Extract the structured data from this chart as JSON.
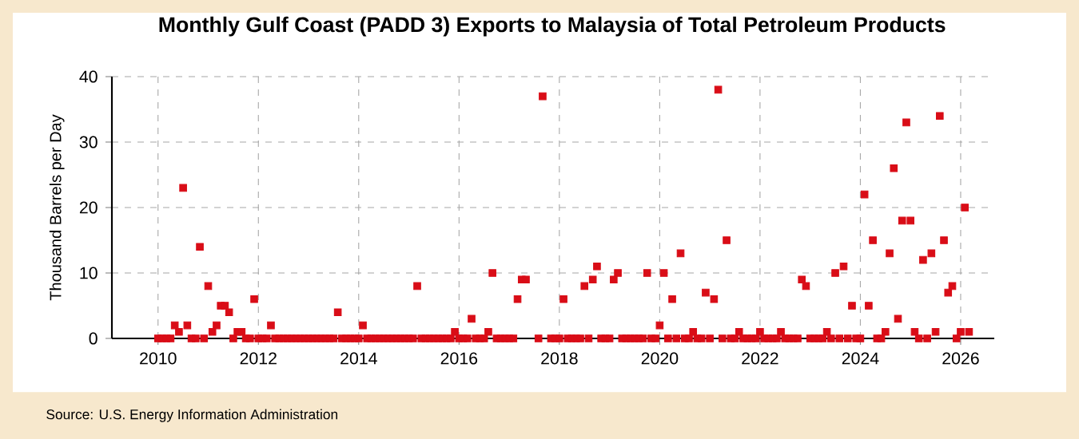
{
  "chart_data": {
    "type": "scatter",
    "title": "Monthly Gulf Coast (PADD 3) Exports to Malaysia of Total Petroleum Products",
    "ylabel": "Thousand Barrels per Day",
    "annotations": [
      "Source: U.S. Energy Information Administration"
    ],
    "x": [
      "2010-01",
      "2010-02",
      "2010-03",
      "2010-04",
      "2010-05",
      "2010-06",
      "2010-07",
      "2010-08",
      "2010-09",
      "2010-10",
      "2010-11",
      "2010-12",
      "2011-01",
      "2011-02",
      "2011-03",
      "2011-04",
      "2011-05",
      "2011-06",
      "2011-07",
      "2011-08",
      "2011-09",
      "2011-10",
      "2011-11",
      "2011-12",
      "2012-01",
      "2012-02",
      "2012-03",
      "2012-04",
      "2012-05",
      "2012-06",
      "2012-07",
      "2012-08",
      "2012-09",
      "2012-10",
      "2012-11",
      "2012-12",
      "2013-01",
      "2013-02",
      "2013-03",
      "2013-04",
      "2013-05",
      "2013-06",
      "2013-07",
      "2013-08",
      "2013-09",
      "2013-10",
      "2013-11",
      "2013-12",
      "2014-01",
      "2014-02",
      "2014-03",
      "2014-04",
      "2014-05",
      "2014-06",
      "2014-07",
      "2014-08",
      "2014-09",
      "2014-10",
      "2014-11",
      "2014-12",
      "2015-01",
      "2015-02",
      "2015-03",
      "2015-04",
      "2015-05",
      "2015-06",
      "2015-07",
      "2015-08",
      "2015-09",
      "2015-10",
      "2015-11",
      "2015-12",
      "2016-01",
      "2016-02",
      "2016-03",
      "2016-04",
      "2016-05",
      "2016-06",
      "2016-07",
      "2016-08",
      "2016-09",
      "2016-10",
      "2016-11",
      "2016-12",
      "2017-01",
      "2017-02",
      "2017-03",
      "2017-04",
      "2017-05",
      "2017-06",
      "2017-07",
      "2017-08",
      "2017-09",
      "2017-10",
      "2017-11",
      "2017-12",
      "2018-01",
      "2018-02",
      "2018-03",
      "2018-04",
      "2018-05",
      "2018-06",
      "2018-07",
      "2018-08",
      "2018-09",
      "2018-10",
      "2018-11",
      "2018-12",
      "2019-01",
      "2019-02",
      "2019-03",
      "2019-04",
      "2019-05",
      "2019-06",
      "2019-07",
      "2019-08",
      "2019-09",
      "2019-10",
      "2019-11",
      "2019-12",
      "2020-01",
      "2020-02",
      "2020-03",
      "2020-04",
      "2020-05",
      "2020-06",
      "2020-07",
      "2020-08",
      "2020-09",
      "2020-10",
      "2020-11",
      "2020-12",
      "2021-01",
      "2021-02",
      "2021-03",
      "2021-04",
      "2021-05",
      "2021-06",
      "2021-07",
      "2021-08",
      "2021-09",
      "2021-10",
      "2021-11",
      "2021-12",
      "2022-01",
      "2022-02",
      "2022-03",
      "2022-04",
      "2022-05",
      "2022-06",
      "2022-07",
      "2022-08",
      "2022-09",
      "2022-10",
      "2022-11",
      "2022-12",
      "2023-01",
      "2023-02",
      "2023-03",
      "2023-04",
      "2023-05",
      "2023-06",
      "2023-07",
      "2023-08",
      "2023-09",
      "2023-10",
      "2023-11",
      "2023-12",
      "2024-01",
      "2024-02",
      "2024-03",
      "2024-04",
      "2024-05",
      "2024-06",
      "2024-07",
      "2024-08",
      "2024-09",
      "2024-10",
      "2024-11",
      "2024-12",
      "2025-01",
      "2025-02",
      "2025-03",
      "2025-04",
      "2025-05",
      "2025-06",
      "2025-07",
      "2025-08",
      "2025-09",
      "2025-10",
      "2025-11",
      "2025-12",
      "2026-01",
      "2026-02",
      "2026-03"
    ],
    "series": [
      {
        "color": "#d90d17",
        "values": [
          0,
          0,
          0,
          0,
          2,
          1,
          23,
          2,
          0,
          0,
          14,
          0,
          8,
          1,
          2,
          5,
          5,
          4,
          0,
          1,
          1,
          0,
          0,
          6,
          0,
          0,
          0,
          2,
          0,
          0,
          0,
          0,
          0,
          0,
          0,
          0,
          0,
          0,
          0,
          0,
          0,
          0,
          0,
          4,
          0,
          0,
          0,
          0,
          0,
          2,
          0,
          0,
          0,
          0,
          0,
          0,
          0,
          0,
          0,
          0,
          0,
          0,
          8,
          0,
          0,
          0,
          0,
          0,
          0,
          0,
          0,
          1,
          0,
          0,
          0,
          3,
          0,
          0,
          0,
          1,
          10,
          0,
          0,
          0,
          0,
          0,
          6,
          9,
          9,
          null,
          null,
          0,
          37,
          null,
          0,
          0,
          0,
          6,
          0,
          0,
          0,
          0,
          8,
          0,
          9,
          11,
          0,
          0,
          0,
          9,
          10,
          0,
          0,
          0,
          0,
          0,
          0,
          10,
          0,
          0,
          2,
          10,
          0,
          6,
          0,
          13,
          0,
          0,
          1,
          0,
          0,
          7,
          0,
          6,
          38,
          0,
          15,
          0,
          0,
          1,
          0,
          0,
          0,
          0,
          1,
          0,
          0,
          0,
          0,
          1,
          0,
          0,
          0,
          0,
          9,
          8,
          0,
          0,
          0,
          0,
          1,
          0,
          10,
          0,
          11,
          0,
          5,
          0,
          0,
          22,
          5,
          15,
          0,
          0,
          1,
          13,
          26,
          3,
          18,
          33,
          18,
          1,
          0,
          12,
          0,
          13,
          1,
          34,
          15,
          7,
          8,
          0,
          1,
          20,
          1
        ]
      }
    ],
    "xlim": [
      "2009-02",
      "2026-09"
    ],
    "xticks": [
      "2010",
      "2012",
      "2014",
      "2016",
      "2018",
      "2020",
      "2022",
      "2024",
      "2026"
    ],
    "ylim": [
      0,
      40
    ],
    "yticks": [
      0,
      10,
      20,
      30,
      40
    ],
    "grid": true,
    "marker": "square"
  }
}
